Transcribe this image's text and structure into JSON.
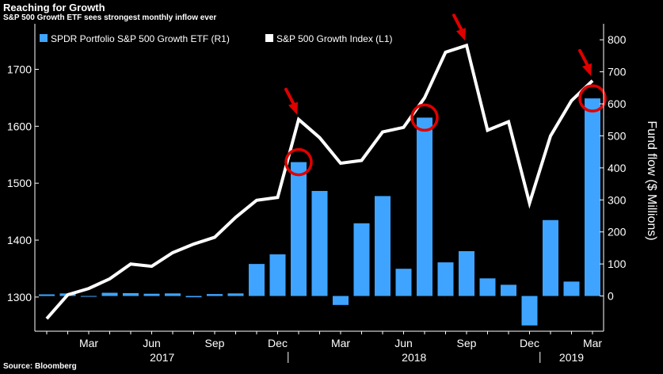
{
  "header": {
    "title": "Reaching for Growth",
    "subtitle": "S&P 500 Growth ETF sees strongest monthly inflow ever"
  },
  "footer": {
    "source": "Source: Bloomberg"
  },
  "colors": {
    "bar": "#3fa4ff",
    "line": "#ffffff",
    "highlight": "#e00000",
    "background": "#000000"
  },
  "chart_data": {
    "type": "bar+line",
    "title": "Reaching for Growth",
    "subtitle": "S&P 500 Growth ETF sees strongest monthly inflow ever",
    "categories": [
      "Jan 2017",
      "Feb 2017",
      "Mar 2017",
      "Apr 2017",
      "May 2017",
      "Jun 2017",
      "Jul 2017",
      "Aug 2017",
      "Sep 2017",
      "Oct 2017",
      "Nov 2017",
      "Dec 2017",
      "Jan 2018",
      "Feb 2018",
      "Mar 2018",
      "Apr 2018",
      "May 2018",
      "Jun 2018",
      "Jul 2018",
      "Aug 2018",
      "Sep 2018",
      "Oct 2018",
      "Nov 2018",
      "Dec 2018",
      "Jan 2019",
      "Feb 2019",
      "Mar 2019"
    ],
    "series": [
      {
        "name": "SPDR Portfolio S&P 500 Growth ETF  (R1)",
        "type": "bar",
        "axis": "right",
        "values": [
          5,
          8,
          -2,
          10,
          9,
          7,
          8,
          -4,
          6,
          8,
          100,
          130,
          418,
          328,
          -28,
          227,
          312,
          85,
          557,
          105,
          140,
          55,
          35,
          -92,
          237,
          45,
          617
        ]
      },
      {
        "name": "S&P 500 Growth Index  (L1)",
        "type": "line",
        "axis": "left",
        "values": [
          1262,
          1304,
          1315,
          1332,
          1358,
          1354,
          1378,
          1393,
          1405,
          1440,
          1470,
          1475,
          1612,
          1580,
          1535,
          1540,
          1590,
          1598,
          1650,
          1730,
          1742,
          1593,
          1608,
          1465,
          1583,
          1645,
          1680
        ]
      }
    ],
    "left_axis": {
      "ylim": [
        1240,
        1780
      ],
      "ticks": [
        1300,
        1400,
        1500,
        1600,
        1700
      ]
    },
    "right_axis": {
      "ylim": [
        -110,
        850
      ],
      "ticks": [
        0,
        100,
        200,
        300,
        400,
        500,
        600,
        700,
        800
      ],
      "label": "Fund flow ($ Millions)"
    },
    "x_ticks": [
      {
        "index": 2,
        "label": "Mar"
      },
      {
        "index": 5,
        "label": "Jun"
      },
      {
        "index": 8,
        "label": "Sep"
      },
      {
        "index": 11,
        "label": "Dec"
      },
      {
        "index": 14,
        "label": "Mar"
      },
      {
        "index": 17,
        "label": "Jun"
      },
      {
        "index": 20,
        "label": "Sep"
      },
      {
        "index": 23,
        "label": "Dec"
      },
      {
        "index": 26,
        "label": "Mar"
      }
    ],
    "years": [
      {
        "label": "2017",
        "center_index": 5.5
      },
      {
        "label": "2018",
        "center_index": 17.5
      },
      {
        "label": "2019",
        "center_index": 25
      }
    ],
    "year_separators": [
      11.5,
      23.5
    ],
    "highlight_bars": [
      12,
      18,
      26
    ],
    "highlight_points": [
      12,
      20,
      26
    ],
    "legend_position": "top-left",
    "grid": false
  }
}
